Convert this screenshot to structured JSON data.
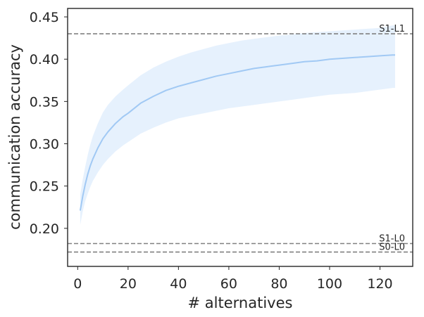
{
  "chart_data": {
    "type": "line",
    "title": "",
    "xlabel": "# alternatives",
    "ylabel": "communication accuracy",
    "xlim": [
      -4,
      133
    ],
    "ylim": [
      0.155,
      0.46
    ],
    "xticks": [
      0,
      20,
      40,
      60,
      80,
      100,
      120
    ],
    "yticks": [
      0.2,
      0.25,
      0.3,
      0.35,
      0.4,
      0.45
    ],
    "grid": false,
    "legend": "none",
    "colors": {
      "line": "#a1c9f4",
      "band": "#d6e8fb",
      "reference": "#808080",
      "frame": "#262626"
    },
    "series": [
      {
        "x": [
          1,
          2,
          3,
          4,
          5,
          6,
          8,
          10,
          12,
          15,
          18,
          20,
          25,
          30,
          35,
          40,
          45,
          50,
          55,
          60,
          65,
          70,
          75,
          80,
          85,
          90,
          95,
          100,
          105,
          110,
          115,
          120,
          125,
          126
        ],
        "values": [
          0.221,
          0.238,
          0.252,
          0.264,
          0.274,
          0.282,
          0.295,
          0.306,
          0.314,
          0.324,
          0.332,
          0.336,
          0.348,
          0.356,
          0.363,
          0.368,
          0.372,
          0.376,
          0.38,
          0.383,
          0.386,
          0.389,
          0.391,
          0.393,
          0.395,
          0.397,
          0.398,
          0.4,
          0.401,
          0.402,
          0.403,
          0.404,
          0.405,
          0.405
        ],
        "lower": [
          0.204,
          0.22,
          0.232,
          0.241,
          0.249,
          0.256,
          0.266,
          0.275,
          0.282,
          0.291,
          0.298,
          0.302,
          0.312,
          0.319,
          0.325,
          0.33,
          0.333,
          0.336,
          0.339,
          0.342,
          0.344,
          0.346,
          0.348,
          0.35,
          0.352,
          0.354,
          0.356,
          0.358,
          0.359,
          0.36,
          0.362,
          0.364,
          0.366,
          0.366
        ],
        "upper": [
          0.24,
          0.258,
          0.273,
          0.287,
          0.299,
          0.309,
          0.324,
          0.337,
          0.346,
          0.356,
          0.364,
          0.369,
          0.381,
          0.39,
          0.397,
          0.403,
          0.408,
          0.412,
          0.416,
          0.419,
          0.422,
          0.424,
          0.426,
          0.428,
          0.429,
          0.431,
          0.432,
          0.433,
          0.434,
          0.435,
          0.436,
          0.437,
          0.44,
          0.44
        ]
      }
    ],
    "reference_lines": [
      {
        "label": "S1-L1",
        "y": 0.43
      },
      {
        "label": "S1-L0",
        "y": 0.182
      },
      {
        "label": "S0-L0",
        "y": 0.172
      }
    ]
  }
}
